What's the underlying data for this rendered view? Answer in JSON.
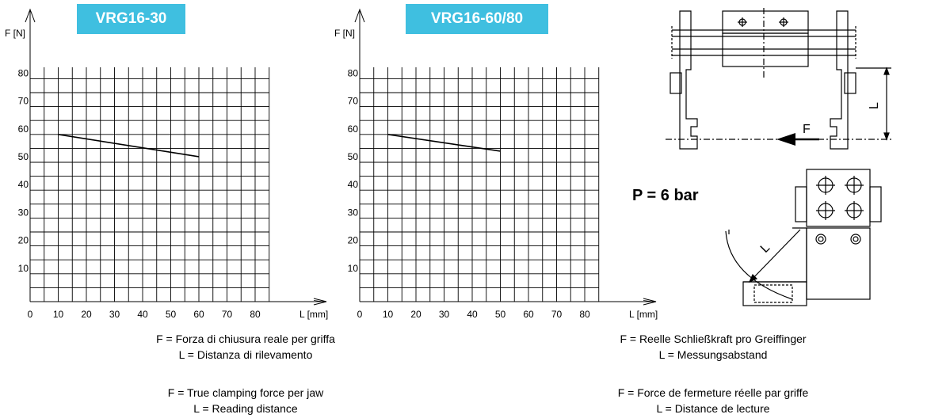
{
  "tags": {
    "left": "VRG16-30",
    "right": "VRG16-60/80"
  },
  "pressure_label": "P = 6 bar",
  "drawing": {
    "force_label": "F",
    "distance_label": "L"
  },
  "captions": {
    "left": [
      "F = Forza di chiusura reale per griffa",
      "L = Distanza di rilevamento"
    ],
    "left_en": [
      "F = True clamping force per jaw",
      "L = Reading distance"
    ],
    "right_de": [
      "F = Reelle Schließkraft pro Greiffinger",
      "L = Messungsabstand"
    ],
    "right_fr": [
      "F = Force de fermeture réelle par griffe",
      "L = Distance de lecture"
    ]
  },
  "chart_data": [
    {
      "type": "line",
      "title": "VRG16-30",
      "xlabel": "L [mm]",
      "ylabel": "F [N]",
      "xlim": [
        0,
        85
      ],
      "ylim": [
        0,
        90
      ],
      "x_ticks": [
        0,
        10,
        20,
        30,
        40,
        50,
        60,
        70,
        80
      ],
      "y_ticks": [
        10,
        20,
        30,
        40,
        50,
        60,
        70,
        80
      ],
      "grid": true,
      "series": [
        {
          "x": [
            10,
            60
          ],
          "y": [
            60,
            52
          ]
        }
      ]
    },
    {
      "type": "line",
      "title": "VRG16-60/80",
      "xlabel": "L [mm]",
      "ylabel": "F [N]",
      "xlim": [
        0,
        85
      ],
      "ylim": [
        0,
        90
      ],
      "x_ticks": [
        0,
        10,
        20,
        30,
        40,
        50,
        60,
        70,
        80
      ],
      "y_ticks": [
        10,
        20,
        30,
        40,
        50,
        60,
        70,
        80
      ],
      "grid": true,
      "series": [
        {
          "x": [
            10,
            50
          ],
          "y": [
            60,
            54
          ]
        }
      ]
    }
  ]
}
